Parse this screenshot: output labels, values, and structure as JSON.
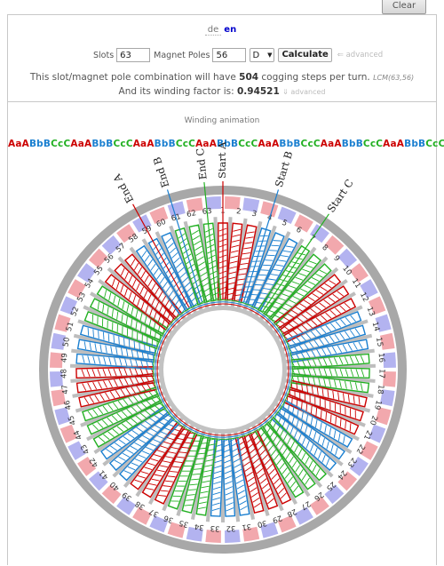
{
  "toolbar": {
    "clear_label": "Clear"
  },
  "language": {
    "de": "de",
    "en": "en",
    "active": "en"
  },
  "inputs": {
    "slots_label": "Slots",
    "slots_value": "63",
    "poles_label": "Magnet Poles",
    "poles_value": "56",
    "layout_value": "D",
    "calculate_label": "Calculate",
    "advanced_label": "⇐ advanced"
  },
  "results": {
    "cogging_prefix": "This slot/magnet pole combination will have",
    "cogging_value": "504",
    "cogging_suffix": "cogging steps per turn.",
    "lcm_label": "LCM(63,56)",
    "winding_prefix": "And its winding factor is:",
    "winding_value": "0.94521",
    "winding_advanced": "⇓ advanced"
  },
  "animation": {
    "title": "Winding animation",
    "sequence": "AaABbBCcCAaABbBCcCAaABbBCcCAaABbBCcCAaABbBCcCAaABbBCcCAaABbBCcC",
    "phase_colors": {
      "A": "#cc0000",
      "B": "#1a7fd0",
      "C": "#22b022"
    },
    "slot_count": 63,
    "lead_labels": [
      "End A",
      "End B",
      "End C",
      "Start A",
      "Start B",
      "Start C"
    ]
  }
}
